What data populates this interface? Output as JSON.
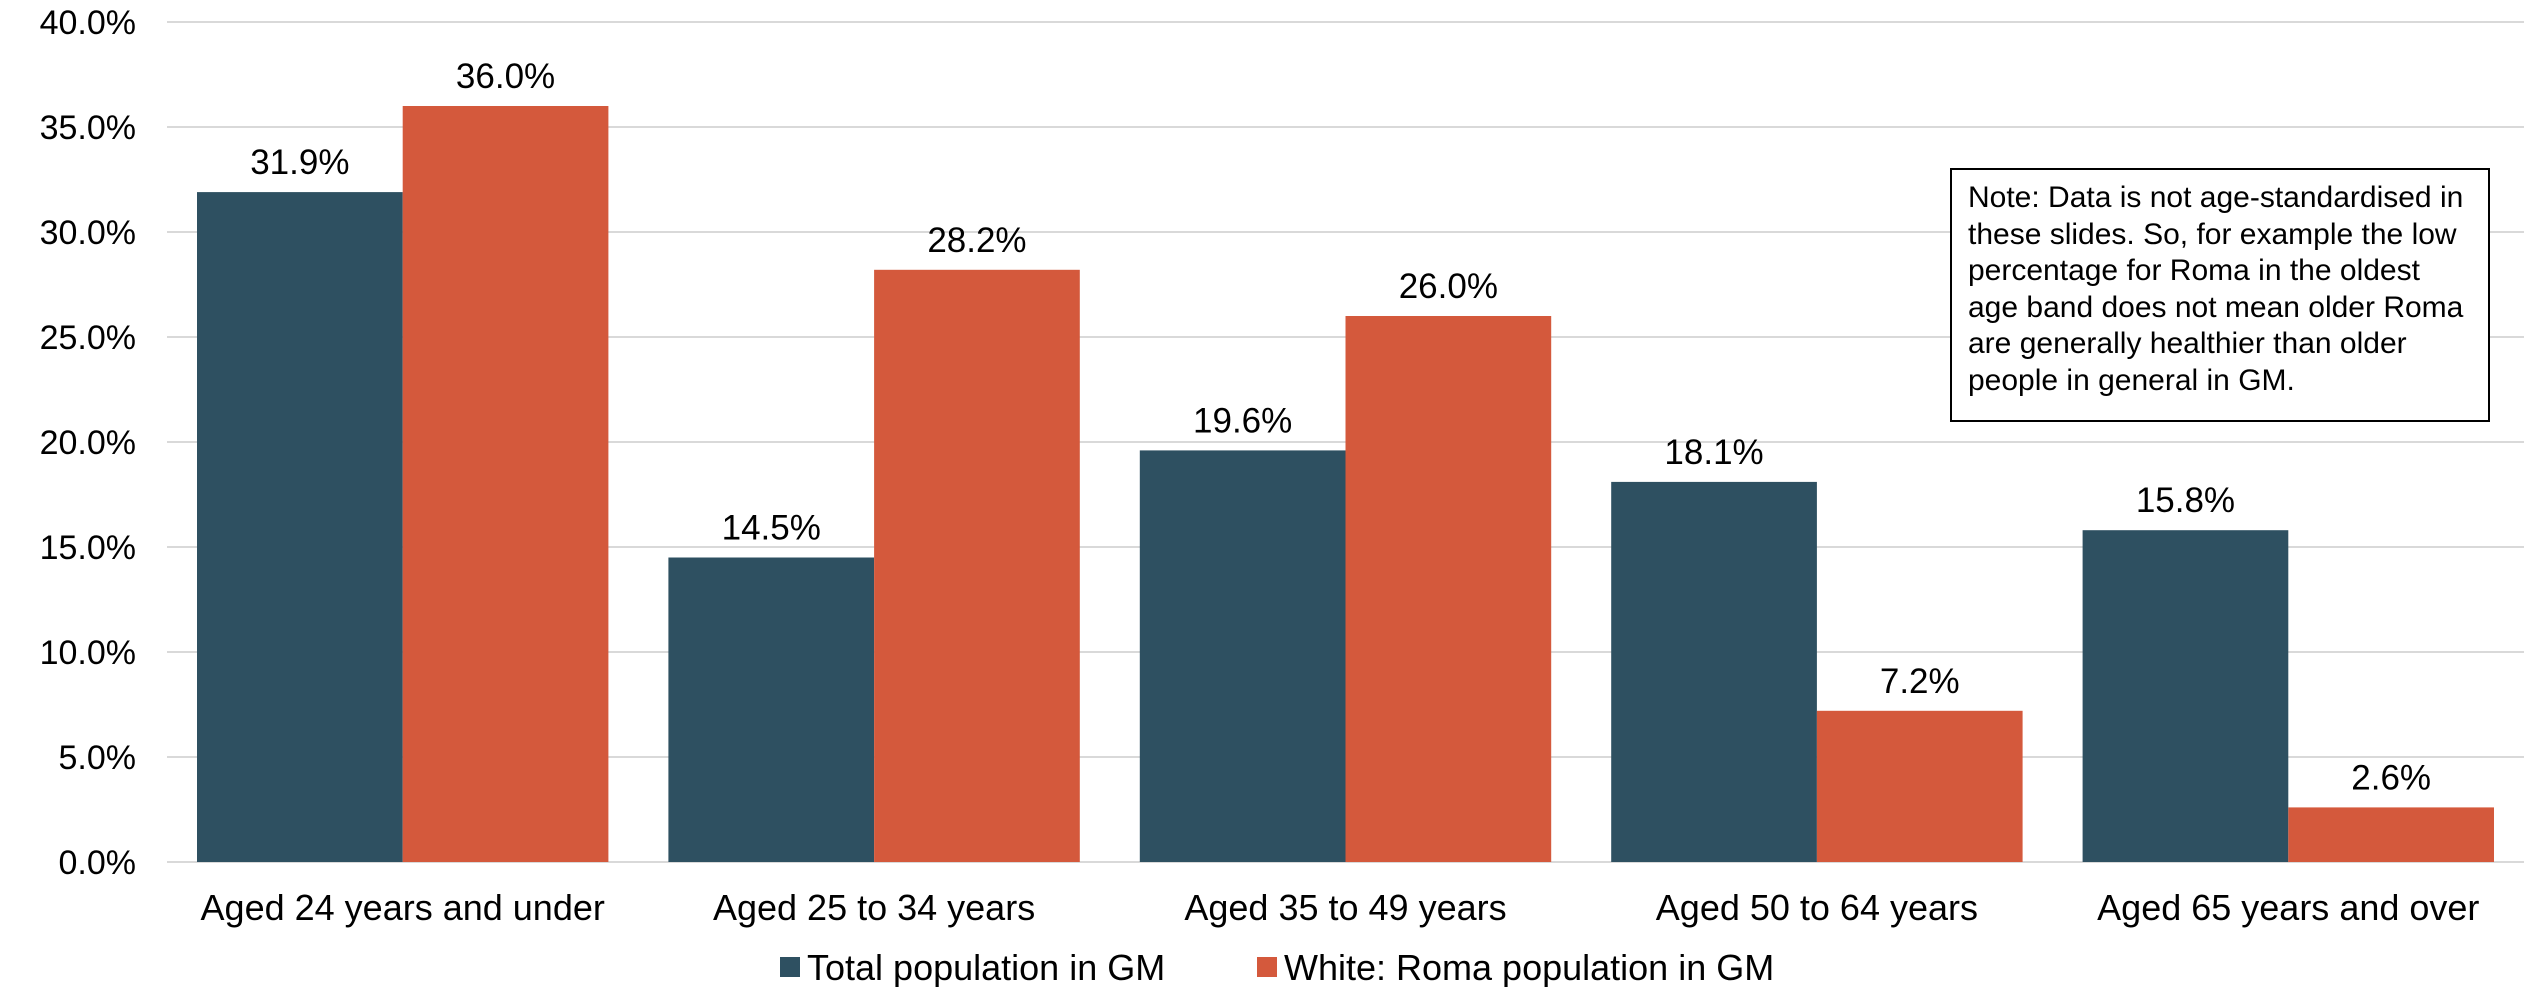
{
  "chart_data": {
    "type": "bar",
    "categories": [
      "Aged 24 years and under",
      "Aged 25 to 34 years",
      "Aged 35 to 49 years",
      "Aged 50 to 64 years",
      "Aged 65 years and over"
    ],
    "series": [
      {
        "name": "Total population in GM",
        "values": [
          31.9,
          14.5,
          19.6,
          18.1,
          15.8
        ],
        "color": "#2e5061"
      },
      {
        "name": "White: Roma population in GM",
        "values": [
          36.0,
          28.2,
          26.0,
          7.2,
          2.6
        ],
        "color": "#d4593c"
      }
    ],
    "ylim": [
      0,
      40
    ],
    "yticks": [
      0,
      5,
      10,
      15,
      20,
      25,
      30,
      35,
      40
    ],
    "value_format": "percent-1dp",
    "grid": true,
    "legend_position": "bottom-center",
    "gridline_color": "#d9d9d9",
    "annotation": "Note: Data is not age-standardised in these slides. So, for example the low percentage for Roma in the oldest age band does not mean older Roma are generally healthier than older people in general in GM."
  }
}
